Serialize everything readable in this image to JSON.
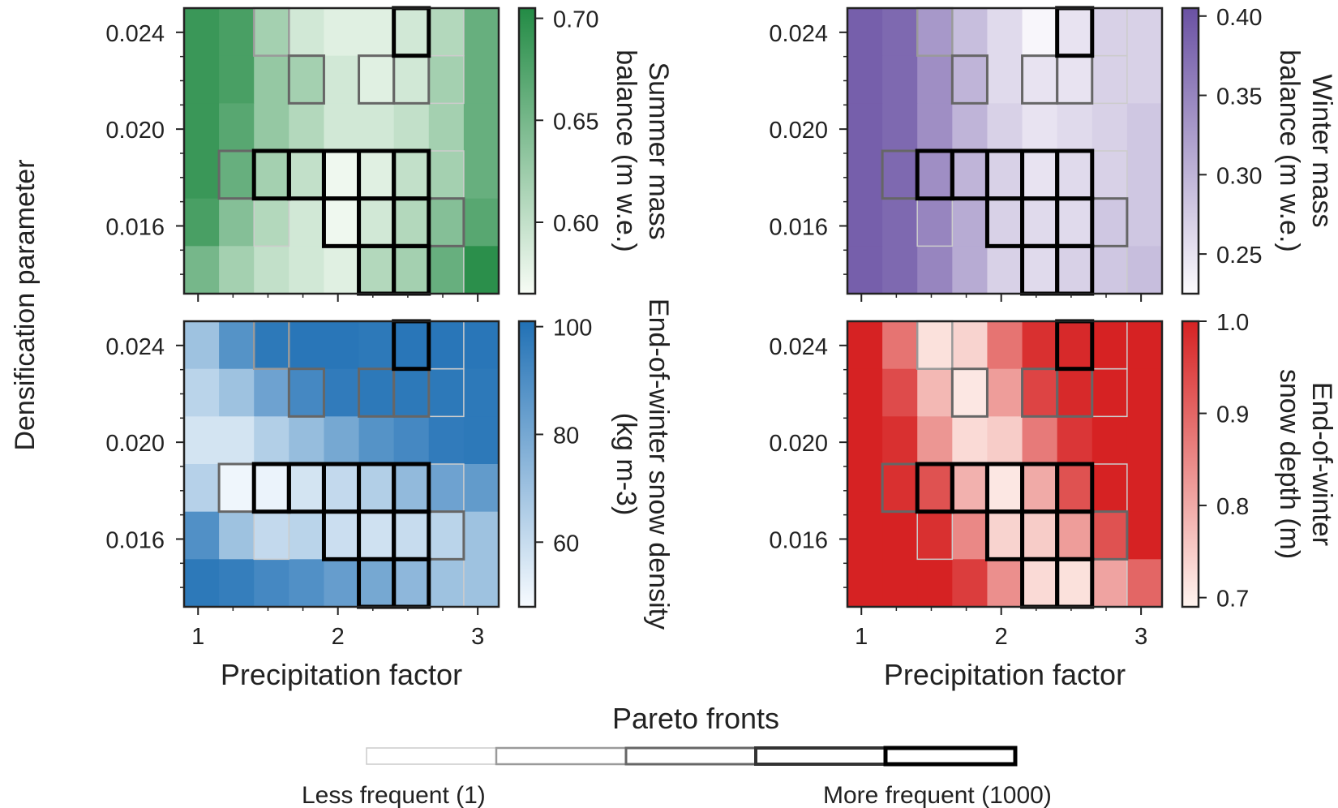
{
  "figure": {
    "ylabel": "Densification parameter",
    "legend_title": "Pareto fronts",
    "legend_left": "Less frequent (1)",
    "legend_right": "More frequent (1000)",
    "legend_levels": [
      1,
      2,
      3,
      4,
      5
    ]
  },
  "chart_data": [
    {
      "type": "heatmap",
      "id": "summer",
      "xlabel": "Precipitation factor",
      "ylabel": "Densification parameter",
      "x_ticks": [
        1,
        2,
        3
      ],
      "y_ticks": [
        0.016,
        0.02,
        0.024
      ],
      "x_range": [
        0.9,
        3.15
      ],
      "y_range": [
        0.0132,
        0.025
      ],
      "colorbar_label": "Summer mass balance (m w.e.)",
      "colorbar_ticks": [
        0.6,
        0.65,
        0.7
      ],
      "colorbar_range": [
        0.565,
        0.705
      ],
      "color_low": "#f7fcf5",
      "color_high": "#238b45",
      "values": [
        [
          0.69,
          0.68,
          0.62,
          0.59,
          0.58,
          0.58,
          0.59,
          0.61,
          0.66
        ],
        [
          0.69,
          0.68,
          0.63,
          0.62,
          0.59,
          0.58,
          0.59,
          0.62,
          0.66
        ],
        [
          0.69,
          0.67,
          0.63,
          0.61,
          0.59,
          0.59,
          0.6,
          0.62,
          0.66
        ],
        [
          0.69,
          0.66,
          0.62,
          0.6,
          0.57,
          0.58,
          0.6,
          0.62,
          0.66
        ],
        [
          0.68,
          0.64,
          0.61,
          0.59,
          0.57,
          0.59,
          0.61,
          0.64,
          0.67
        ],
        [
          0.65,
          0.62,
          0.6,
          0.59,
          0.58,
          0.61,
          0.62,
          0.66,
          0.7
        ]
      ]
    },
    {
      "type": "heatmap",
      "id": "winter",
      "xlabel": "Precipitation factor",
      "ylabel": "",
      "x_ticks": [
        1,
        2,
        3
      ],
      "y_ticks": [
        0.016,
        0.02,
        0.024
      ],
      "x_range": [
        0.9,
        3.15
      ],
      "y_range": [
        0.0132,
        0.025
      ],
      "colorbar_label": "Winter mass balance (m w.e.)",
      "colorbar_ticks": [
        0.25,
        0.3,
        0.35,
        0.4
      ],
      "colorbar_range": [
        0.225,
        0.405
      ],
      "color_low": "#fcfbfd",
      "color_high": "#6a51a3",
      "values": [
        [
          0.39,
          0.38,
          0.33,
          0.29,
          0.26,
          0.23,
          0.25,
          0.27,
          0.27
        ],
        [
          0.39,
          0.38,
          0.34,
          0.3,
          0.26,
          0.25,
          0.25,
          0.27,
          0.27
        ],
        [
          0.39,
          0.38,
          0.34,
          0.3,
          0.27,
          0.25,
          0.26,
          0.27,
          0.28
        ],
        [
          0.39,
          0.38,
          0.34,
          0.3,
          0.27,
          0.25,
          0.26,
          0.27,
          0.28
        ],
        [
          0.39,
          0.38,
          0.35,
          0.31,
          0.27,
          0.26,
          0.26,
          0.28,
          0.28
        ],
        [
          0.39,
          0.38,
          0.35,
          0.31,
          0.27,
          0.26,
          0.27,
          0.28,
          0.29
        ]
      ]
    },
    {
      "type": "heatmap",
      "id": "density",
      "xlabel": "Precipitation factor",
      "ylabel": "Densification parameter",
      "x_ticks": [
        1,
        2,
        3
      ],
      "y_ticks": [
        0.016,
        0.02,
        0.024
      ],
      "x_range": [
        0.9,
        3.15
      ],
      "y_range": [
        0.0132,
        0.025
      ],
      "colorbar_label": "End-of-winter snow density (kg m-3)",
      "colorbar_ticks": [
        60,
        80,
        100
      ],
      "colorbar_range": [
        48,
        101
      ],
      "color_low": "#f7fbff",
      "color_high": "#2171b5",
      "values": [
        [
          70,
          88,
          98,
          99,
          99,
          98,
          99,
          99,
          99
        ],
        [
          63,
          70,
          82,
          92,
          97,
          98,
          98,
          98,
          98
        ],
        [
          57,
          57,
          65,
          72,
          80,
          88,
          92,
          97,
          98
        ],
        [
          64,
          50,
          51,
          57,
          61,
          65,
          73,
          82,
          85
        ],
        [
          89,
          70,
          61,
          63,
          59,
          58,
          60,
          63,
          70
        ],
        [
          98,
          96,
          92,
          89,
          84,
          80,
          74,
          70,
          70
        ]
      ]
    },
    {
      "type": "heatmap",
      "id": "depth",
      "xlabel": "Precipitation factor",
      "ylabel": "",
      "x_ticks": [
        1,
        2,
        3
      ],
      "y_ticks": [
        0.016,
        0.02,
        0.024
      ],
      "x_range": [
        0.9,
        3.15
      ],
      "y_range": [
        0.0132,
        0.025
      ],
      "colorbar_label": "End-of-winter snow depth (m)",
      "colorbar_ticks": [
        0.7,
        0.8,
        0.9,
        1.0
      ],
      "colorbar_range": [
        0.69,
        1.0
      ],
      "color_low": "#fff5f0",
      "color_high": "#d62223",
      "values": [
        [
          1.0,
          0.88,
          0.72,
          0.74,
          0.88,
          0.98,
          0.99,
          1.0,
          1.0
        ],
        [
          1.0,
          0.94,
          0.78,
          0.71,
          0.82,
          0.95,
          0.99,
          1.0,
          1.0
        ],
        [
          1.0,
          0.98,
          0.83,
          0.73,
          0.75,
          0.87,
          0.97,
          1.0,
          1.0
        ],
        [
          1.0,
          0.98,
          0.93,
          0.79,
          0.71,
          0.8,
          0.93,
          1.0,
          1.0
        ],
        [
          1.0,
          1.0,
          0.98,
          0.85,
          0.74,
          0.75,
          0.82,
          0.93,
          1.0
        ],
        [
          1.0,
          1.0,
          1.0,
          0.96,
          0.84,
          0.73,
          0.72,
          0.81,
          0.9
        ]
      ]
    }
  ],
  "pareto": [
    [
      0,
      0,
      2,
      0,
      0,
      0,
      5,
      1,
      0
    ],
    [
      0,
      0,
      0,
      3,
      0,
      3,
      3,
      1,
      0
    ],
    [
      0,
      0,
      0,
      0,
      0,
      0,
      0,
      0,
      0
    ],
    [
      0,
      3,
      5,
      5,
      5,
      5,
      5,
      1,
      0
    ],
    [
      0,
      0,
      1,
      0,
      5,
      5,
      5,
      3,
      0
    ],
    [
      0,
      0,
      0,
      0,
      0,
      5,
      5,
      1,
      0
    ]
  ]
}
